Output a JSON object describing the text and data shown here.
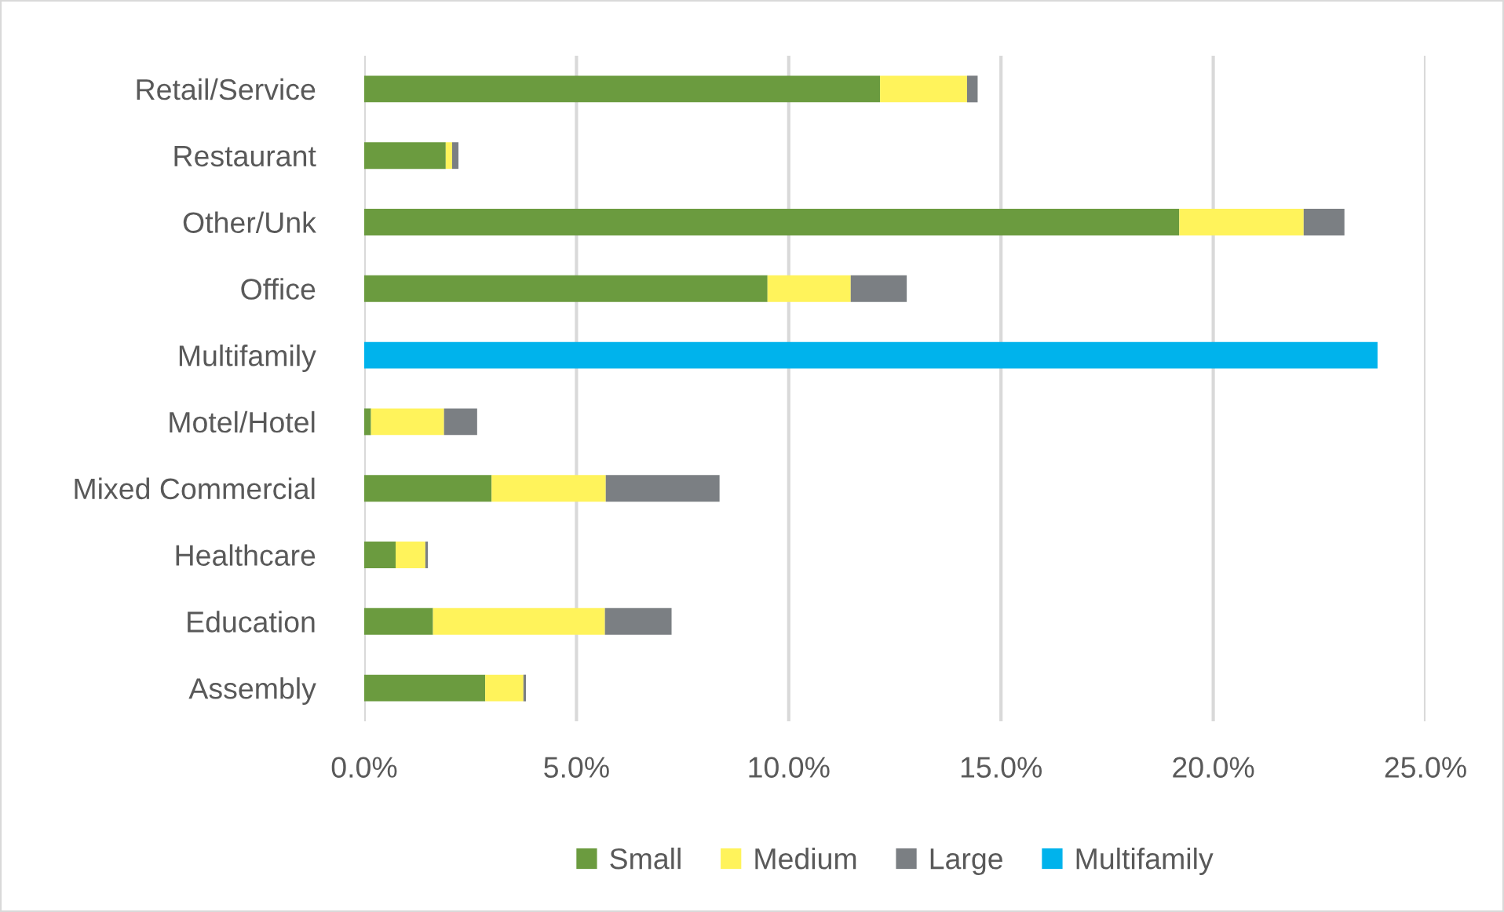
{
  "chart_data": {
    "type": "bar",
    "orientation": "horizontal",
    "stacked": true,
    "categories": [
      "Retail/Service",
      "Restaurant",
      "Other/Unk",
      "Office",
      "Multifamily",
      "Motel/Hotel",
      "Mixed Commercial",
      "Healthcare",
      "Education",
      "Assembly"
    ],
    "series": [
      {
        "name": "Small",
        "color": "#6b9b3f",
        "values": [
          12.15,
          1.92,
          19.2,
          9.5,
          null,
          0.16,
          3.0,
          0.74,
          1.62,
          2.85
        ]
      },
      {
        "name": "Medium",
        "color": "#fff35b",
        "values": [
          2.05,
          0.15,
          2.93,
          1.96,
          null,
          1.72,
          2.69,
          0.7,
          4.05,
          0.9
        ]
      },
      {
        "name": "Large",
        "color": "#7b7f83",
        "values": [
          0.25,
          0.15,
          0.96,
          1.32,
          null,
          0.78,
          2.68,
          0.06,
          1.57,
          0.06
        ]
      },
      {
        "name": "Multifamily",
        "color": "#00b3ec",
        "values": [
          null,
          null,
          null,
          null,
          23.87,
          null,
          null,
          null,
          null,
          null
        ]
      }
    ],
    "xlim": [
      0,
      25
    ],
    "xticks": [
      {
        "value": 0,
        "label": "0.0%"
      },
      {
        "value": 5,
        "label": "5.0%"
      },
      {
        "value": 10,
        "label": "10.0%"
      },
      {
        "value": 15,
        "label": "15.0%"
      },
      {
        "value": 20,
        "label": "20.0%"
      },
      {
        "value": 25,
        "label": "25.0%"
      }
    ],
    "grid": "x",
    "legend": "bottom"
  }
}
